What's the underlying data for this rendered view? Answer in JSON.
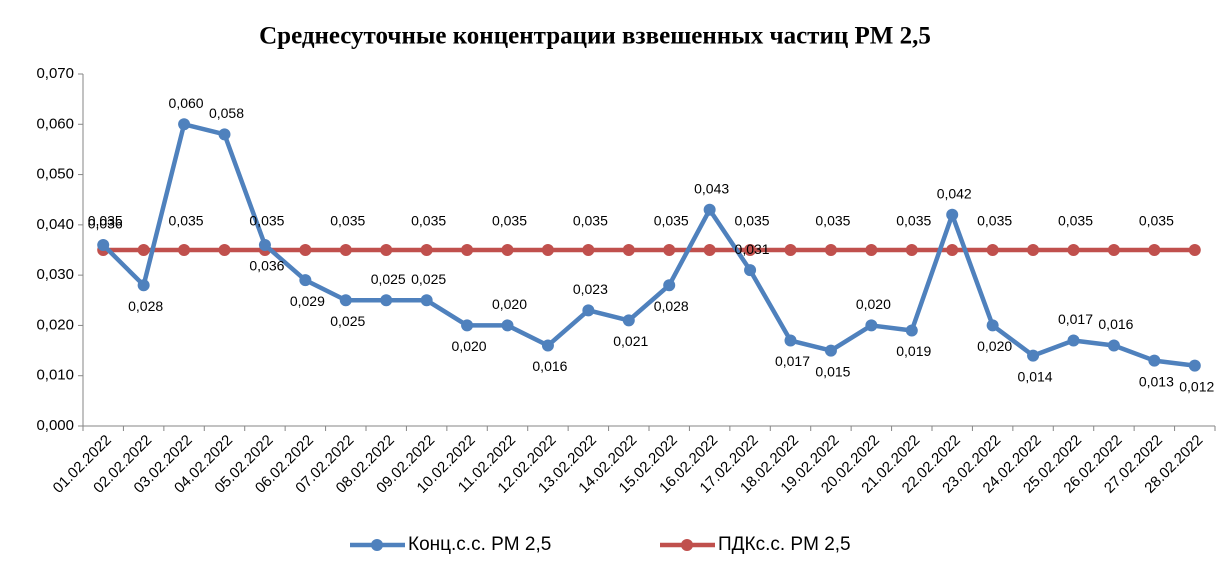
{
  "chart_data": {
    "type": "line",
    "title": "Среднесуточные концентрации взвешенных частиц PM 2,5",
    "categories": [
      "01.02.2022",
      "02.02.2022",
      "03.02.2022",
      "04.02.2022",
      "05.02.2022",
      "06.02.2022",
      "07.02.2022",
      "08.02.2022",
      "09.02.2022",
      "10.02.2022",
      "11.02.2022",
      "12.02.2022",
      "13.02.2022",
      "14.02.2022",
      "15.02.2022",
      "16.02.2022",
      "17.02.2022",
      "18.02.2022",
      "19.02.2022",
      "20.02.2022",
      "21.02.2022",
      "22.02.2022",
      "23.02.2022",
      "24.02.2022",
      "25.02.2022",
      "26.02.2022",
      "27.02.2022",
      "28.02.2022"
    ],
    "series": [
      {
        "name": "Конц.с.с. PM 2,5",
        "color": "#4f81bd",
        "values": [
          0.036,
          0.028,
          0.06,
          0.058,
          0.036,
          0.029,
          0.025,
          0.025,
          0.025,
          0.02,
          0.02,
          0.016,
          0.023,
          0.021,
          0.028,
          0.043,
          0.031,
          0.017,
          0.015,
          0.02,
          0.019,
          0.042,
          0.02,
          0.014,
          0.017,
          0.016,
          0.013,
          0.012
        ],
        "value_labels": [
          "0,036",
          "0,028",
          "0,060",
          "0,058",
          "0,036",
          "0,029",
          "0,025",
          "0,025",
          "0,025",
          "0,020",
          "0,020",
          "0,016",
          "0,023",
          "0,021",
          "0,028",
          "0,043",
          "0,031",
          "0,017",
          "0,015",
          "0,020",
          "0,019",
          "0,042",
          "0,020",
          "0,014",
          "0,017",
          "0,016",
          "0,013",
          "0,012"
        ]
      },
      {
        "name": "ПДКс.с. PM 2,5",
        "color": "#c0504d",
        "label_color": "#ff0000",
        "values": [
          0.035,
          0.035,
          0.035,
          0.035,
          0.035,
          0.035,
          0.035,
          0.035,
          0.035,
          0.035,
          0.035,
          0.035,
          0.035,
          0.035,
          0.035,
          0.035,
          0.035,
          0.035,
          0.035,
          0.035,
          0.035,
          0.035,
          0.035,
          0.035,
          0.035,
          0.035,
          0.035,
          0.035
        ],
        "value_labels": [
          "0,035",
          null,
          "0,035",
          null,
          "0,035",
          null,
          "0,035",
          null,
          "0,035",
          null,
          "0,035",
          null,
          "0,035",
          null,
          "0,035",
          null,
          "0,035",
          null,
          "0,035",
          null,
          "0,035",
          null,
          "0,035",
          null,
          "0,035",
          null,
          "0,035",
          null
        ]
      }
    ],
    "ylim": [
      0,
      0.07
    ],
    "yticks": [
      {
        "value": 0,
        "label": "0,000"
      },
      {
        "value": 0.01,
        "label": "0,010"
      },
      {
        "value": 0.02,
        "label": "0,020"
      },
      {
        "value": 0.03,
        "label": "0,030"
      },
      {
        "value": 0.04,
        "label": "0,040"
      },
      {
        "value": 0.05,
        "label": "0,050"
      },
      {
        "value": 0.06,
        "label": "0,060"
      },
      {
        "value": 0.07,
        "label": "0,070"
      }
    ],
    "grid": false,
    "legend": "bottom"
  }
}
